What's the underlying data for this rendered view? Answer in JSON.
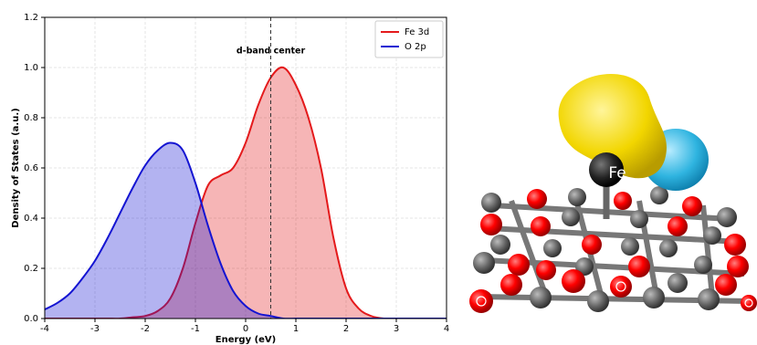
{
  "chart_data": {
    "type": "line",
    "xlabel": "Energy (eV)",
    "ylabel": "Density of States (a.u.)",
    "x": [
      -4,
      -3.75,
      -3.5,
      -3.25,
      -3,
      -2.75,
      -2.5,
      -2.25,
      -2,
      -1.75,
      -1.5,
      -1.25,
      -1,
      -0.75,
      -0.5,
      -0.25,
      0,
      0.25,
      0.5,
      0.75,
      1,
      1.25,
      1.5,
      1.75,
      2,
      2.25,
      2.5,
      2.75,
      3,
      3.25,
      3.5,
      3.75,
      4
    ],
    "series": [
      {
        "name": "Fe 3d",
        "color": "#e41a1c",
        "values": [
          0,
          0,
          0,
          0,
          0,
          0,
          0,
          0.005,
          0.01,
          0.03,
          0.08,
          0.2,
          0.38,
          0.53,
          0.57,
          0.6,
          0.7,
          0.85,
          0.96,
          1.0,
          0.93,
          0.8,
          0.6,
          0.32,
          0.12,
          0.04,
          0.01,
          0,
          0,
          0,
          0,
          0,
          0
        ]
      },
      {
        "name": "O 2p",
        "color": "#1414d2",
        "values": [
          0.036,
          0.062,
          0.1,
          0.16,
          0.23,
          0.32,
          0.42,
          0.52,
          0.61,
          0.67,
          0.7,
          0.67,
          0.54,
          0.37,
          0.22,
          0.11,
          0.05,
          0.02,
          0.01,
          0,
          0,
          0,
          0,
          0,
          0,
          0,
          0,
          0,
          0,
          0,
          0,
          0,
          0
        ]
      }
    ],
    "fill": true,
    "vline": 0.5,
    "vline_label": "d-band center",
    "xlim": [
      -4,
      4
    ],
    "xticks": [
      -4,
      -3,
      -2,
      -1,
      0,
      1,
      2,
      3,
      4
    ],
    "ylim": [
      0,
      1.2
    ],
    "yticks": [
      {
        "value": 0,
        "label": "0.0"
      },
      0.2,
      0.4,
      0.6,
      0.8,
      {
        "value": 1,
        "label": "1.0"
      },
      1.2
    ],
    "grid": true,
    "legend": "upper right"
  },
  "illustration": {
    "atom_label": "Fe"
  }
}
